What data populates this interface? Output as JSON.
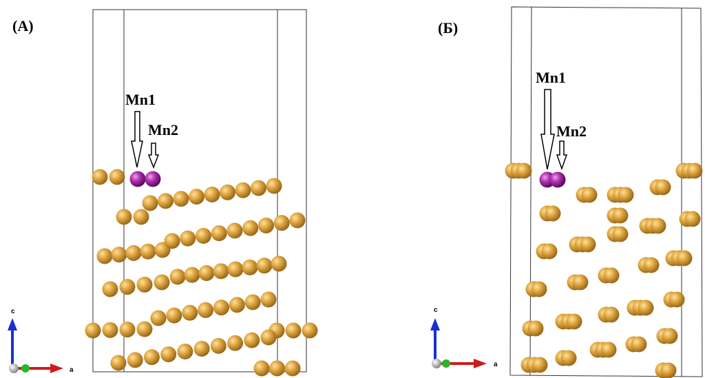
{
  "panels": [
    {
      "label": "(А)",
      "mn1": "Mn1",
      "mn2": "Mn2",
      "axis_c": "c",
      "axis_a": "a"
    },
    {
      "label": "(Б)",
      "mn1": "Mn1",
      "mn2": "Mn2",
      "axis_c": "c",
      "axis_a": "a"
    }
  ]
}
